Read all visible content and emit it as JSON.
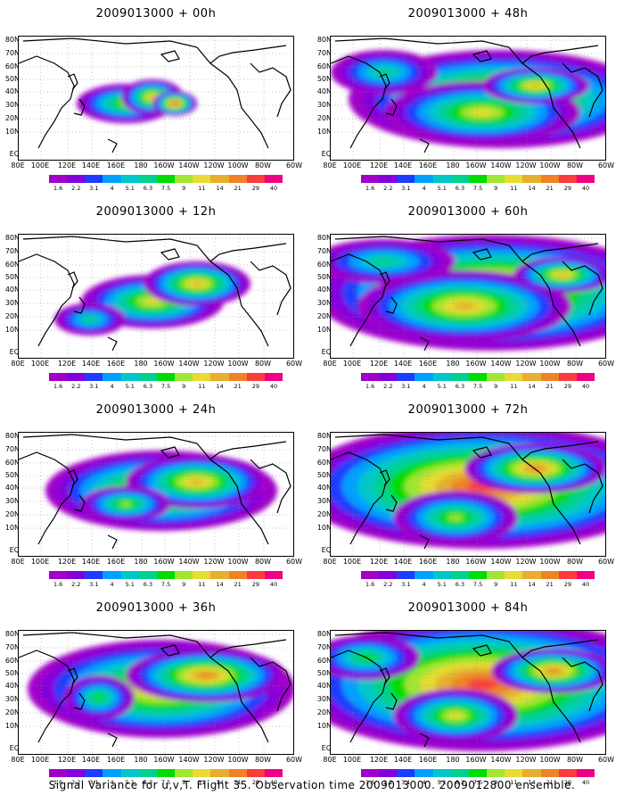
{
  "footer": "Signal Variance for u,v,T. Flight 35. Observation time 2009013000. 2009012800 ensemble.",
  "colorbar": {
    "labels": [
      "1.6",
      "2.2",
      "3.1",
      "4",
      "5.1",
      "6.3",
      "7.5",
      "9",
      "11",
      "14",
      "21",
      "29",
      "40"
    ],
    "colors": [
      "#a000c8",
      "#8200dc",
      "#1e3cff",
      "#00a0ff",
      "#00c8c8",
      "#00d28c",
      "#00dc00",
      "#a0e632",
      "#e6dc32",
      "#e6af2d",
      "#f08228",
      "#fa3c3c",
      "#f00082"
    ]
  },
  "lat_labels": [
    "80N",
    "70N",
    "60N",
    "50N",
    "40N",
    "30N",
    "20N",
    "10N",
    "EQ"
  ],
  "lon_labels": [
    "80E",
    "100E",
    "120E",
    "140E",
    "160E",
    "180",
    "160W",
    "140W",
    "120W",
    "100W",
    "80W",
    "60W"
  ],
  "chart_data": [
    {
      "type": "heatmap",
      "title": "2009013000 + 00h",
      "forecast_hour": 0,
      "max_level": "14"
    },
    {
      "type": "heatmap",
      "title": "2009013000 + 48h",
      "forecast_hour": 48,
      "max_level": "29"
    },
    {
      "type": "heatmap",
      "title": "2009013000 + 12h",
      "forecast_hour": 12,
      "max_level": "14"
    },
    {
      "type": "heatmap",
      "title": "2009013000 + 60h",
      "forecast_hour": 60,
      "max_level": "29"
    },
    {
      "type": "heatmap",
      "title": "2009013000 + 24h",
      "forecast_hour": 24,
      "max_level": "14"
    },
    {
      "type": "heatmap",
      "title": "2009013000 + 72h",
      "forecast_hour": 72,
      "max_level": "29"
    },
    {
      "type": "heatmap",
      "title": "2009013000 + 36h",
      "forecast_hour": 36,
      "max_level": "21"
    },
    {
      "type": "heatmap",
      "title": "2009013000 + 84h",
      "forecast_hour": 84,
      "max_level": "29"
    }
  ]
}
